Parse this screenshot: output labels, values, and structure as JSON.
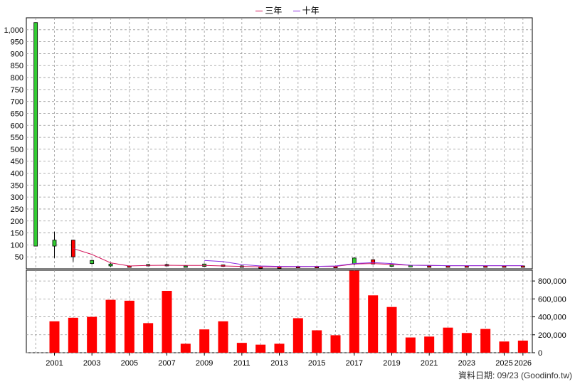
{
  "legend": {
    "items": [
      {
        "label": "三年",
        "color": "#d4145a"
      },
      {
        "label": "十年",
        "color": "#8a2be2"
      }
    ]
  },
  "footer": {
    "text": "資料日期: 09/23  (Goodinfo.tw)"
  },
  "chart_data": [
    {
      "type": "candlestick",
      "title": "",
      "x": [
        2000,
        2001,
        2002,
        2003,
        2004,
        2005,
        2006,
        2007,
        2008,
        2009,
        2010,
        2011,
        2012,
        2013,
        2014,
        2015,
        2016,
        2017,
        2018,
        2019,
        2020,
        2021,
        2022,
        2023,
        2024,
        2025,
        2026
      ],
      "open": [
        1030,
        120,
        50,
        35,
        20,
        12,
        18,
        18,
        12,
        20,
        14,
        12,
        8,
        8,
        10,
        10,
        10,
        45,
        20,
        16,
        14,
        12,
        12,
        12,
        12,
        12,
        12
      ],
      "close": [
        95,
        95,
        120,
        22,
        12,
        12,
        15,
        16,
        8,
        10,
        16,
        10,
        8,
        8,
        10,
        10,
        10,
        20,
        38,
        14,
        12,
        12,
        12,
        12,
        12,
        12,
        12
      ],
      "high": [
        1030,
        155,
        122,
        38,
        25,
        14,
        20,
        22,
        14,
        22,
        18,
        14,
        9,
        9,
        11,
        11,
        11,
        48,
        40,
        18,
        15,
        13,
        13,
        13,
        13,
        13,
        13
      ],
      "low": [
        95,
        45,
        30,
        18,
        8,
        9,
        12,
        12,
        6,
        8,
        12,
        8,
        6,
        6,
        8,
        8,
        8,
        15,
        18,
        12,
        10,
        10,
        10,
        10,
        10,
        10,
        10
      ],
      "ma": [
        {
          "name": "三年",
          "color": "#d4145a",
          "x": [
            2002,
            2003,
            2004,
            2005,
            2006,
            2007,
            2008,
            2009,
            2010,
            2011,
            2012,
            2013,
            2014,
            2015,
            2016,
            2017,
            2018,
            2019,
            2020,
            2021,
            2022,
            2023,
            2024,
            2025,
            2026
          ],
          "values": [
            85,
            60,
            25,
            12,
            14,
            15,
            14,
            14,
            12,
            10,
            8,
            8,
            9,
            10,
            10,
            20,
            22,
            18,
            15,
            14,
            13,
            13,
            13,
            13,
            13
          ]
        },
        {
          "name": "十年",
          "color": "#8a2be2",
          "x": [
            2009,
            2010,
            2011,
            2012,
            2013,
            2014,
            2015,
            2016,
            2017,
            2018,
            2019,
            2020,
            2021,
            2022,
            2023,
            2024,
            2025,
            2026
          ],
          "values": [
            35,
            30,
            18,
            12,
            10,
            10,
            10,
            12,
            22,
            26,
            22,
            15,
            14,
            13,
            13,
            13,
            13,
            13
          ]
        }
      ],
      "yticks": [
        50,
        100,
        150,
        200,
        250,
        300,
        350,
        400,
        450,
        500,
        550,
        600,
        650,
        700,
        750,
        800,
        850,
        900,
        950,
        1000
      ],
      "ytick_labels": [
        "50",
        "100",
        "150",
        "200",
        "250",
        "300",
        "350",
        "400",
        "450",
        "500",
        "550",
        "600",
        "650",
        "700",
        "750",
        "800",
        "850",
        "900",
        "950",
        "1,000"
      ],
      "ylim": [
        0,
        1050
      ]
    },
    {
      "type": "bar",
      "x": [
        2001,
        2002,
        2003,
        2004,
        2005,
        2006,
        2007,
        2008,
        2009,
        2010,
        2011,
        2012,
        2013,
        2014,
        2015,
        2016,
        2017,
        2018,
        2019,
        2020,
        2021,
        2022,
        2023,
        2024,
        2025,
        2026
      ],
      "values": [
        350000,
        390000,
        400000,
        590000,
        580000,
        330000,
        690000,
        100000,
        260000,
        350000,
        110000,
        90000,
        100000,
        385000,
        250000,
        195000,
        915000,
        640000,
        510000,
        170000,
        180000,
        280000,
        220000,
        265000,
        125000,
        135000
      ],
      "color": "#ff0000",
      "yticks": [
        0,
        200000,
        400000,
        600000,
        800000
      ],
      "ytick_labels": [
        "0",
        "200,000",
        "400,000",
        "600,000",
        "800,000"
      ],
      "ylim": [
        0,
        920000
      ]
    }
  ],
  "xaxis": {
    "tick_years": [
      2001,
      2003,
      2005,
      2007,
      2009,
      2011,
      2013,
      2015,
      2017,
      2019,
      2021,
      2023,
      2025,
      2026
    ],
    "tick_labels": [
      "2001",
      "2003",
      "2005",
      "2007",
      "2009",
      "2011",
      "2013",
      "2015",
      "2017",
      "2019",
      "2021",
      "2023",
      "2025",
      "2026"
    ],
    "range": [
      1999.5,
      2026.5
    ]
  }
}
